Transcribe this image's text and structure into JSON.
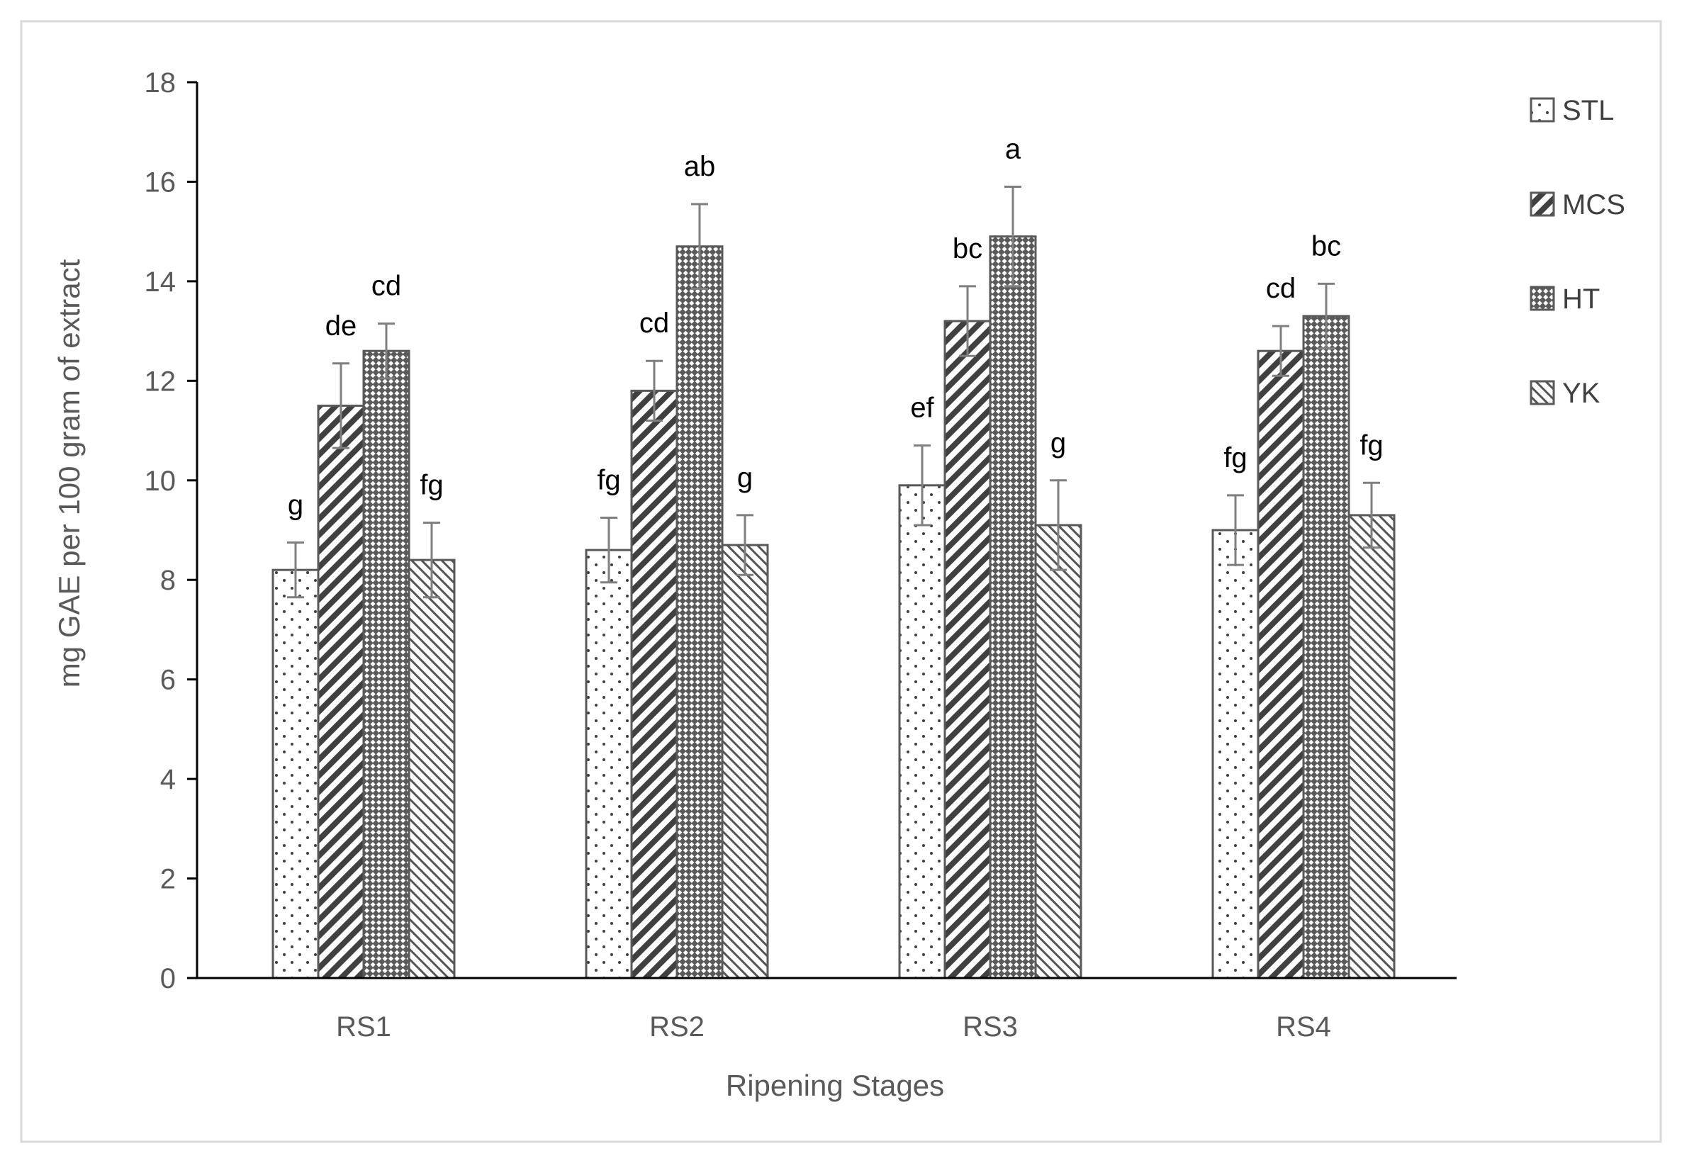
{
  "chart_data": {
    "type": "bar",
    "title": "",
    "xlabel": "Ripening Stages",
    "ylabel": "mg GAE per 100 gram of extract",
    "ylim": [
      0,
      18
    ],
    "yticks": [
      0,
      2,
      4,
      6,
      8,
      10,
      12,
      14,
      16,
      18
    ],
    "categories": [
      "RS1",
      "RS2",
      "RS3",
      "RS4"
    ],
    "grid": false,
    "legend_position": "right",
    "series": [
      {
        "name": "STL",
        "pattern": "dots",
        "values": [
          8.2,
          8.6,
          9.9,
          9.0
        ],
        "errors": [
          0.55,
          0.65,
          0.8,
          0.7
        ],
        "labels": [
          "g",
          "fg",
          "ef",
          "fg"
        ]
      },
      {
        "name": "MCS",
        "pattern": "wide-diagonal",
        "values": [
          11.5,
          11.8,
          13.2,
          12.6
        ],
        "errors": [
          0.85,
          0.6,
          0.7,
          0.5
        ],
        "labels": [
          "de",
          "cd",
          "bc",
          "cd"
        ]
      },
      {
        "name": "HT",
        "pattern": "crosshatch",
        "values": [
          12.6,
          14.7,
          14.9,
          13.3
        ],
        "errors": [
          0.55,
          0.85,
          1.0,
          0.65
        ],
        "labels": [
          "cd",
          "ab",
          "a",
          "bc"
        ]
      },
      {
        "name": "YK",
        "pattern": "narrow-diagonal",
        "values": [
          8.4,
          8.7,
          9.1,
          9.3
        ],
        "errors": [
          0.75,
          0.6,
          0.9,
          0.65
        ],
        "labels": [
          "fg",
          "g",
          "g",
          "fg"
        ]
      }
    ],
    "colors": {
      "bar_stroke": "#595959",
      "pattern": "#404040",
      "axis": "#000000",
      "error_bar": "#7f7f7f",
      "frame": "#d9d9d9"
    }
  }
}
